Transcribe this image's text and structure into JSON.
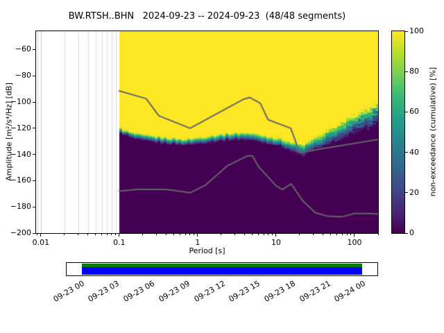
{
  "title": "BW.RTSH..BHN   2024-09-23 -- 2024-09-23  (48/48 segments)",
  "axes": {
    "xlabel": "Period [s]",
    "ylabel": "Amplitude [m²/s⁴/Hz] [dB]",
    "xticks": [
      {
        "v": 0.01,
        "label": "0.01"
      },
      {
        "v": 0.1,
        "label": "0.1"
      },
      {
        "v": 1,
        "label": "1"
      },
      {
        "v": 10,
        "label": "10"
      },
      {
        "v": 100,
        "label": "100"
      }
    ],
    "yticks": [
      {
        "v": -60,
        "label": "−60"
      },
      {
        "v": -80,
        "label": "−80"
      },
      {
        "v": -100,
        "label": "−100"
      },
      {
        "v": -120,
        "label": "−120"
      },
      {
        "v": -140,
        "label": "−140"
      },
      {
        "v": -160,
        "label": "−160"
      },
      {
        "v": -180,
        "label": "−180"
      },
      {
        "v": -200,
        "label": "−200"
      }
    ]
  },
  "colorbar": {
    "label": "non-exceedance (cumulative) [%]",
    "range": [
      0,
      100
    ],
    "ticks": [
      {
        "v": 0,
        "label": "0"
      },
      {
        "v": 20,
        "label": "20"
      },
      {
        "v": 40,
        "label": "40"
      },
      {
        "v": 60,
        "label": "60"
      },
      {
        "v": 80,
        "label": "80"
      },
      {
        "v": 100,
        "label": "100"
      }
    ],
    "viridis_stops": [
      "#440154",
      "#482878",
      "#3e4989",
      "#31688e",
      "#26828e",
      "#1f9e89",
      "#35b779",
      "#6ece58",
      "#b5de2b",
      "#fde725"
    ]
  },
  "timeline": {
    "tick_labels": [
      "09-23 00",
      "09-23 03",
      "09-23 06",
      "09-23 09",
      "09-23 12",
      "09-23 15",
      "09-23 18",
      "09-23 21",
      "09-24 00"
    ],
    "coverage_color_top": "#008000",
    "coverage_color_main": "#0000ff",
    "coverage_fraction": [
      0.049,
      0.951
    ]
  },
  "chart_data": {
    "type": "heatmap",
    "title": "BW.RTSH..BHN   2024-09-23 -- 2024-09-23  (48/48 segments)",
    "station": "BW.RTSH..BHN",
    "date_range": "2024-09-23 -- 2024-09-23",
    "segments_used": 48,
    "segments_total": 48,
    "xlabel": "Period [s]",
    "ylabel": "Amplitude [m²/s⁴/Hz] [dB]",
    "xscale": "log",
    "xlim": [
      0.0087,
      200
    ],
    "ylim_db": [
      -200,
      -46
    ],
    "colormap": "viridis",
    "colorbar_label": "non-exceedance (cumulative) [%]",
    "colorbar_range_pct": [
      0,
      100
    ],
    "data_period_range_s": [
      0.1,
      200
    ],
    "median_db_vs_period": [
      [
        0.1,
        -122
      ],
      [
        0.15,
        -126.5
      ],
      [
        0.2,
        -128
      ],
      [
        0.3,
        -129
      ],
      [
        0.5,
        -130.5
      ],
      [
        0.7,
        -131
      ],
      [
        1,
        -130
      ],
      [
        1.5,
        -128.5
      ],
      [
        2.5,
        -127
      ],
      [
        4,
        -126.5
      ],
      [
        6,
        -128
      ],
      [
        9,
        -130
      ],
      [
        13,
        -132.5
      ],
      [
        18,
        -136
      ],
      [
        22,
        -137
      ],
      [
        30,
        -133
      ],
      [
        45,
        -128
      ],
      [
        70,
        -122
      ],
      [
        110,
        -116
      ],
      [
        160,
        -112
      ],
      [
        200,
        -109
      ]
    ],
    "band_halfwidth_db": [
      [
        0.1,
        2.2
      ],
      [
        1,
        2.4
      ],
      [
        10,
        3
      ],
      [
        30,
        5
      ],
      [
        80,
        6.5
      ],
      [
        200,
        8
      ]
    ],
    "noise_models": {
      "nhnm_db_vs_period": [
        [
          0.1,
          -91.5
        ],
        [
          0.22,
          -97.4
        ],
        [
          0.32,
          -110.5
        ],
        [
          0.8,
          -120
        ],
        [
          3.8,
          -98
        ],
        [
          4.6,
          -96.5
        ],
        [
          6.3,
          -101
        ],
        [
          7.9,
          -113.5
        ],
        [
          15.4,
          -120
        ],
        [
          20,
          -138.5
        ],
        [
          200,
          -128.5
        ]
      ],
      "nlnm_db_vs_period": [
        [
          0.1,
          -168
        ],
        [
          0.17,
          -166.7
        ],
        [
          0.4,
          -166.7
        ],
        [
          0.8,
          -169.2
        ],
        [
          1.24,
          -163.7
        ],
        [
          2.4,
          -148.6
        ],
        [
          4.3,
          -141.1
        ],
        [
          5,
          -141.1
        ],
        [
          6,
          -149.4
        ],
        [
          10,
          -163.8
        ],
        [
          12,
          -166.7
        ],
        [
          15.6,
          -162.5
        ],
        [
          21.9,
          -175.4
        ],
        [
          31.6,
          -184.4
        ],
        [
          45,
          -187.1
        ],
        [
          70,
          -187.5
        ],
        [
          101,
          -185
        ],
        [
          154,
          -185
        ],
        [
          200,
          -185.5
        ]
      ]
    }
  }
}
